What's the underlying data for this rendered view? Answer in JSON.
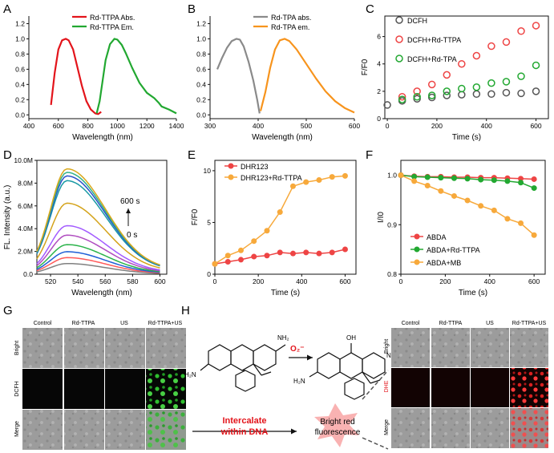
{
  "panel_letters": {
    "A": "A",
    "B": "B",
    "C": "C",
    "D": "D",
    "E": "E",
    "F": "F",
    "G": "G",
    "H": "H"
  },
  "chart_data": [
    {
      "id": "A",
      "type": "line",
      "xlabel": "Wavelength (nm)",
      "ylabel": "",
      "xlim": [
        400,
        1400
      ],
      "ylim": [
        -0.05,
        1.3
      ],
      "xticks": [
        400,
        600,
        800,
        1000,
        1200,
        1400
      ],
      "yticks": [
        0.0,
        0.2,
        0.4,
        0.6,
        0.8,
        1.0,
        1.2
      ],
      "legend": "top",
      "series": [
        {
          "name": "Rd-TTPA Abs.",
          "color": "#e3141b",
          "x": [
            550,
            575,
            600,
            625,
            650,
            670,
            700,
            730,
            760,
            790,
            820,
            850,
            870,
            890
          ],
          "y": [
            0.13,
            0.55,
            0.86,
            0.98,
            1.0,
            0.98,
            0.86,
            0.62,
            0.38,
            0.18,
            0.07,
            0.02,
            0.01,
            0.04
          ]
        },
        {
          "name": "Rd-TTPA Em.",
          "color": "#22a831",
          "x": [
            860,
            880,
            900,
            920,
            950,
            980,
            1000,
            1030,
            1060,
            1100,
            1150,
            1200,
            1250,
            1280,
            1300,
            1350,
            1400
          ],
          "y": [
            0.02,
            0.18,
            0.45,
            0.72,
            0.93,
            1.0,
            0.99,
            0.92,
            0.8,
            0.62,
            0.42,
            0.29,
            0.22,
            0.16,
            0.11,
            0.07,
            0.02
          ]
        }
      ]
    },
    {
      "id": "B",
      "type": "line",
      "xlabel": "Wavelength (nm)",
      "ylabel": "",
      "xlim": [
        300,
        600
      ],
      "ylim": [
        -0.05,
        1.3
      ],
      "xticks": [
        300,
        400,
        500,
        600
      ],
      "yticks": [
        0.0,
        0.2,
        0.4,
        0.6,
        0.8,
        1.0,
        1.2
      ],
      "legend": "top",
      "series": [
        {
          "name": "Rd-TPA abs.",
          "color": "#8a8a8a",
          "x": [
            315,
            325,
            335,
            345,
            355,
            362,
            370,
            380,
            390,
            398,
            403
          ],
          "y": [
            0.6,
            0.75,
            0.88,
            0.97,
            1.0,
            0.99,
            0.9,
            0.7,
            0.45,
            0.2,
            0.02
          ]
        },
        {
          "name": "Rd-TPA em.",
          "color": "#f7941d",
          "x": [
            405,
            415,
            425,
            435,
            445,
            455,
            465,
            480,
            500,
            520,
            540,
            560,
            580,
            600
          ],
          "y": [
            0.05,
            0.3,
            0.62,
            0.86,
            0.98,
            1.0,
            0.97,
            0.86,
            0.67,
            0.48,
            0.31,
            0.18,
            0.09,
            0.03
          ]
        }
      ]
    },
    {
      "id": "C",
      "type": "scatter",
      "xlabel": "Time (s)",
      "ylabel": "F/F0",
      "xlim": [
        -10,
        650
      ],
      "ylim": [
        0,
        7.5
      ],
      "xticks": [
        0,
        200,
        400,
        600
      ],
      "yticks": [
        0,
        2,
        4,
        6
      ],
      "legend": "top-left",
      "series": [
        {
          "name": "DCFH",
          "color": "#555555",
          "x": [
            0,
            60,
            120,
            180,
            240,
            300,
            360,
            420,
            480,
            540,
            600
          ],
          "y": [
            1.0,
            1.3,
            1.45,
            1.55,
            1.7,
            1.75,
            1.8,
            1.8,
            1.9,
            1.85,
            2.0
          ]
        },
        {
          "name": "DCFH+Rd-TTPA",
          "color": "#ee4444",
          "x": [
            60,
            120,
            180,
            240,
            300,
            360,
            420,
            480,
            540,
            600
          ],
          "y": [
            1.6,
            2.0,
            2.5,
            3.2,
            4.0,
            4.6,
            5.3,
            5.6,
            6.4,
            6.8
          ]
        },
        {
          "name": "DCFH+Rd-TPA",
          "color": "#22a831",
          "x": [
            60,
            120,
            180,
            240,
            300,
            360,
            420,
            480,
            540,
            600
          ],
          "y": [
            1.4,
            1.6,
            1.7,
            2.0,
            2.2,
            2.3,
            2.6,
            2.7,
            3.1,
            3.9
          ]
        }
      ]
    },
    {
      "id": "D",
      "type": "line",
      "xlabel": "Wavelength (nm)",
      "ylabel": "FL. Intensity (a.u.)",
      "xlim": [
        510,
        605
      ],
      "ylim": [
        0,
        10000000
      ],
      "xticks": [
        520,
        540,
        560,
        580,
        600
      ],
      "ytick_labels": [
        "0.0",
        "2.0M",
        "4.0M",
        "6.0M",
        "8.0M",
        "10.0M"
      ],
      "ytick_values": [
        0,
        2000000,
        4000000,
        6000000,
        8000000,
        10000000
      ],
      "annotation_top": "600 s",
      "annotation_bottom": "0 s",
      "peak_wavelength": 532,
      "series_peaks": [
        900000,
        1400000,
        1900000,
        2500000,
        3300000,
        4100000,
        6000000,
        7900000,
        8300000,
        8600000,
        8900000
      ],
      "series_colors": [
        "#808080",
        "#ff5a5a",
        "#1f5fd6",
        "#2bb34a",
        "#b04ec0",
        "#a35cff",
        "#d4a31b",
        "#1a9aa5",
        "#2a52c9",
        "#32b28a",
        "#d9a81c"
      ]
    },
    {
      "id": "E",
      "type": "line",
      "xlabel": "Time (s)",
      "ylabel": "F/F0",
      "xlim": [
        0,
        650
      ],
      "ylim": [
        0,
        11
      ],
      "xticks": [
        0,
        200,
        400,
        600
      ],
      "yticks": [
        0,
        5,
        10
      ],
      "legend": "top-left",
      "series": [
        {
          "name": "DHR123",
          "color": "#ee4444",
          "x": [
            0,
            60,
            120,
            180,
            240,
            300,
            360,
            420,
            480,
            540,
            600
          ],
          "y": [
            1.0,
            1.2,
            1.4,
            1.7,
            1.8,
            2.1,
            2.0,
            2.1,
            2.0,
            2.1,
            2.4
          ]
        },
        {
          "name": "DHR123+Rd-TTPA",
          "color": "#f7a93b",
          "x": [
            0,
            60,
            120,
            180,
            240,
            300,
            360,
            420,
            480,
            540,
            600
          ],
          "y": [
            1.0,
            1.8,
            2.3,
            3.2,
            4.2,
            6.0,
            8.5,
            8.9,
            9.1,
            9.4,
            9.5
          ]
        }
      ]
    },
    {
      "id": "F",
      "type": "line",
      "xlabel": "Time (s)",
      "ylabel": "I/I0",
      "xlim": [
        0,
        650
      ],
      "ylim": [
        0.8,
        1.03
      ],
      "xticks": [
        0,
        200,
        400,
        600
      ],
      "yticks": [
        0.8,
        0.9,
        1.0
      ],
      "legend": "bottom-left",
      "series": [
        {
          "name": "ABDA",
          "color": "#ee4444",
          "x": [
            0,
            60,
            120,
            180,
            240,
            300,
            360,
            420,
            480,
            540,
            600
          ],
          "y": [
            1.0,
            0.998,
            0.997,
            0.997,
            0.996,
            0.996,
            0.995,
            0.995,
            0.994,
            0.993,
            0.992
          ]
        },
        {
          "name": "ABDA+Rd-TTPA",
          "color": "#22a831",
          "x": [
            0,
            60,
            120,
            180,
            240,
            300,
            360,
            420,
            480,
            540,
            600
          ],
          "y": [
            1.0,
            0.997,
            0.996,
            0.995,
            0.994,
            0.993,
            0.991,
            0.99,
            0.988,
            0.985,
            0.974
          ]
        },
        {
          "name": "ABDA+MB",
          "color": "#f7a93b",
          "x": [
            0,
            60,
            120,
            180,
            240,
            300,
            360,
            420,
            480,
            540,
            600
          ],
          "y": [
            1.0,
            0.988,
            0.979,
            0.968,
            0.958,
            0.949,
            0.938,
            0.929,
            0.912,
            0.903,
            0.879
          ]
        }
      ]
    }
  ],
  "panel_g": {
    "columns": [
      "Control",
      "Rd-TTPA",
      "US",
      "Rd-TTPA+US"
    ],
    "rows": [
      "Bright",
      "DCFH",
      "Merge"
    ]
  },
  "panel_h_left": {
    "o2_label": "O₂⁻",
    "nh2_top": "NH₂",
    "nh2_left": "H₂N",
    "oh": "OH",
    "nh_right": "NH",
    "h2n_product": "H₂N",
    "intercalate_line1": "Intercalate",
    "intercalate_line2": "within DNA",
    "bright_line1": "Bright red",
    "bright_line2": "fluorescence"
  },
  "panel_h_right": {
    "columns": [
      "Control",
      "Rd-TTPA",
      "US",
      "Rd-TTPA+US"
    ],
    "rows": [
      "Bright",
      "DHE",
      "Merge"
    ]
  }
}
